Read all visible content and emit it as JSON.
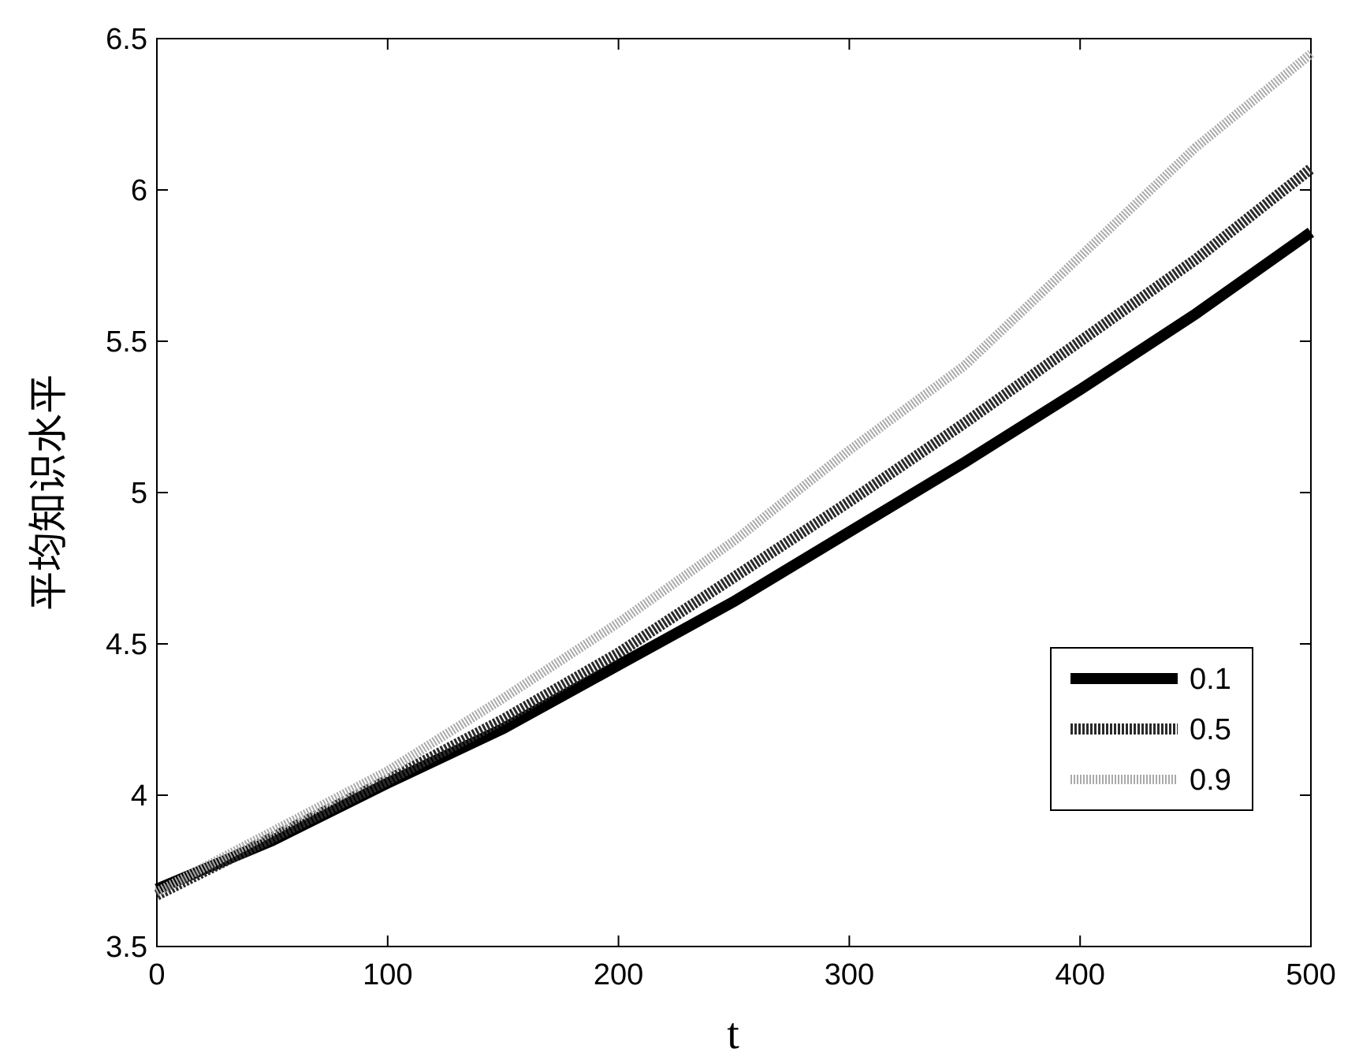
{
  "chart_data": {
    "type": "line",
    "x_label": "t",
    "y_label": "平均知识水平",
    "x": [
      0,
      50,
      100,
      150,
      200,
      250,
      300,
      350,
      400,
      450,
      500
    ],
    "series": [
      {
        "name": "0.1",
        "color": "#000000",
        "values": [
          3.69,
          3.85,
          4.04,
          4.22,
          4.43,
          4.64,
          4.87,
          5.1,
          5.34,
          5.59,
          5.86
        ]
      },
      {
        "name": "0.5",
        "color": "#2a2a2a",
        "values": [
          3.67,
          3.86,
          4.05,
          4.25,
          4.47,
          4.72,
          4.97,
          5.23,
          5.5,
          5.77,
          6.07
        ]
      },
      {
        "name": "0.9",
        "color": "#aaaaaa",
        "values": [
          3.68,
          3.88,
          4.08,
          4.32,
          4.57,
          4.84,
          5.14,
          5.42,
          5.78,
          6.14,
          6.45
        ]
      }
    ],
    "xlim": [
      0,
      500
    ],
    "xticks": [
      0,
      100,
      200,
      300,
      400,
      500
    ],
    "ylim": [
      3.5,
      6.5
    ],
    "yticks": [
      3.5,
      4,
      4.5,
      5,
      5.5,
      6,
      6.5
    ],
    "legend": "lower right"
  }
}
